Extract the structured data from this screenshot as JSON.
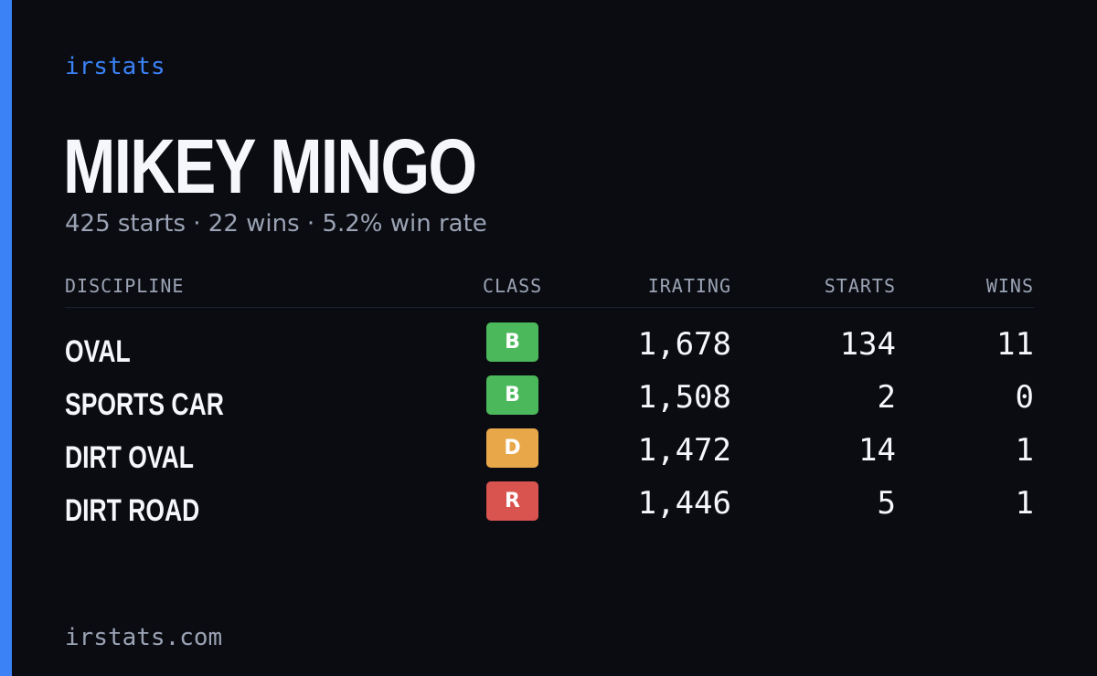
{
  "brand": {
    "label": "irstats"
  },
  "driver": {
    "name": "MIKEY MINGO",
    "summary": "425 starts · 22 wins · 5.2% win rate"
  },
  "table": {
    "headers": {
      "discipline": "DISCIPLINE",
      "class": "CLASS",
      "irating": "IRATING",
      "starts": "STARTS",
      "wins": "WINS"
    },
    "rows": [
      {
        "discipline": "OVAL",
        "class": "B",
        "class_color": "#4cb85c",
        "irating": "1,678",
        "starts": "134",
        "wins": "11"
      },
      {
        "discipline": "SPORTS CAR",
        "class": "B",
        "class_color": "#4cb85c",
        "irating": "1,508",
        "starts": "2",
        "wins": "0"
      },
      {
        "discipline": "DIRT OVAL",
        "class": "D",
        "class_color": "#e8a84a",
        "irating": "1,472",
        "starts": "14",
        "wins": "1"
      },
      {
        "discipline": "DIRT ROAD",
        "class": "R",
        "class_color": "#d9534f",
        "irating": "1,446",
        "starts": "5",
        "wins": "1"
      }
    ]
  },
  "footer": {
    "domain": "irstats.com"
  },
  "colors": {
    "accent": "#3b82f6",
    "background": "#0a0c12",
    "text_primary": "#f5f7fa",
    "text_muted": "#9ba3b4"
  }
}
